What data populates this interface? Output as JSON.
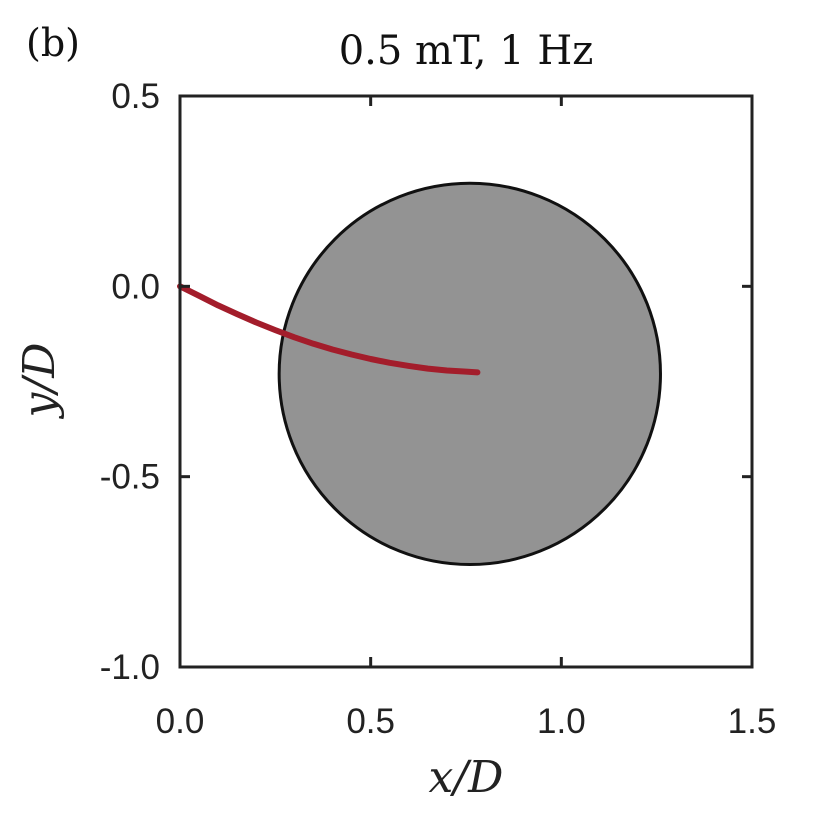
{
  "chart_data": {
    "type": "line",
    "panel_label": "(b)",
    "title": "0.5 mT, 1 Hz",
    "xlabel": "x/D",
    "ylabel": "y/D",
    "xlim": [
      0.0,
      1.5
    ],
    "ylim": [
      -1.0,
      0.5
    ],
    "x_ticks": [
      "0.0",
      "0.5",
      "1.0",
      "1.5"
    ],
    "y_ticks": [
      "0.5",
      "0.0",
      "-0.5",
      "-1.0"
    ],
    "x_tick_values": [
      0.0,
      0.5,
      1.0,
      1.5
    ],
    "y_tick_values": [
      0.5,
      0.0,
      -0.5,
      -1.0
    ],
    "grid": false,
    "circle": {
      "cx": 0.76,
      "cy": -0.23,
      "r": 0.5,
      "fill": "#939393",
      "stroke": "#111111"
    },
    "series": [
      {
        "color": "#a31d2b",
        "x": [
          0.0,
          0.05,
          0.1,
          0.15,
          0.2,
          0.25,
          0.3,
          0.35,
          0.4,
          0.45,
          0.5,
          0.55,
          0.6,
          0.65,
          0.7,
          0.75,
          0.78
        ],
        "y": [
          0.0,
          -0.025,
          -0.05,
          -0.073,
          -0.095,
          -0.115,
          -0.134,
          -0.151,
          -0.166,
          -0.179,
          -0.191,
          -0.201,
          -0.209,
          -0.216,
          -0.221,
          -0.224,
          -0.226
        ]
      }
    ]
  }
}
